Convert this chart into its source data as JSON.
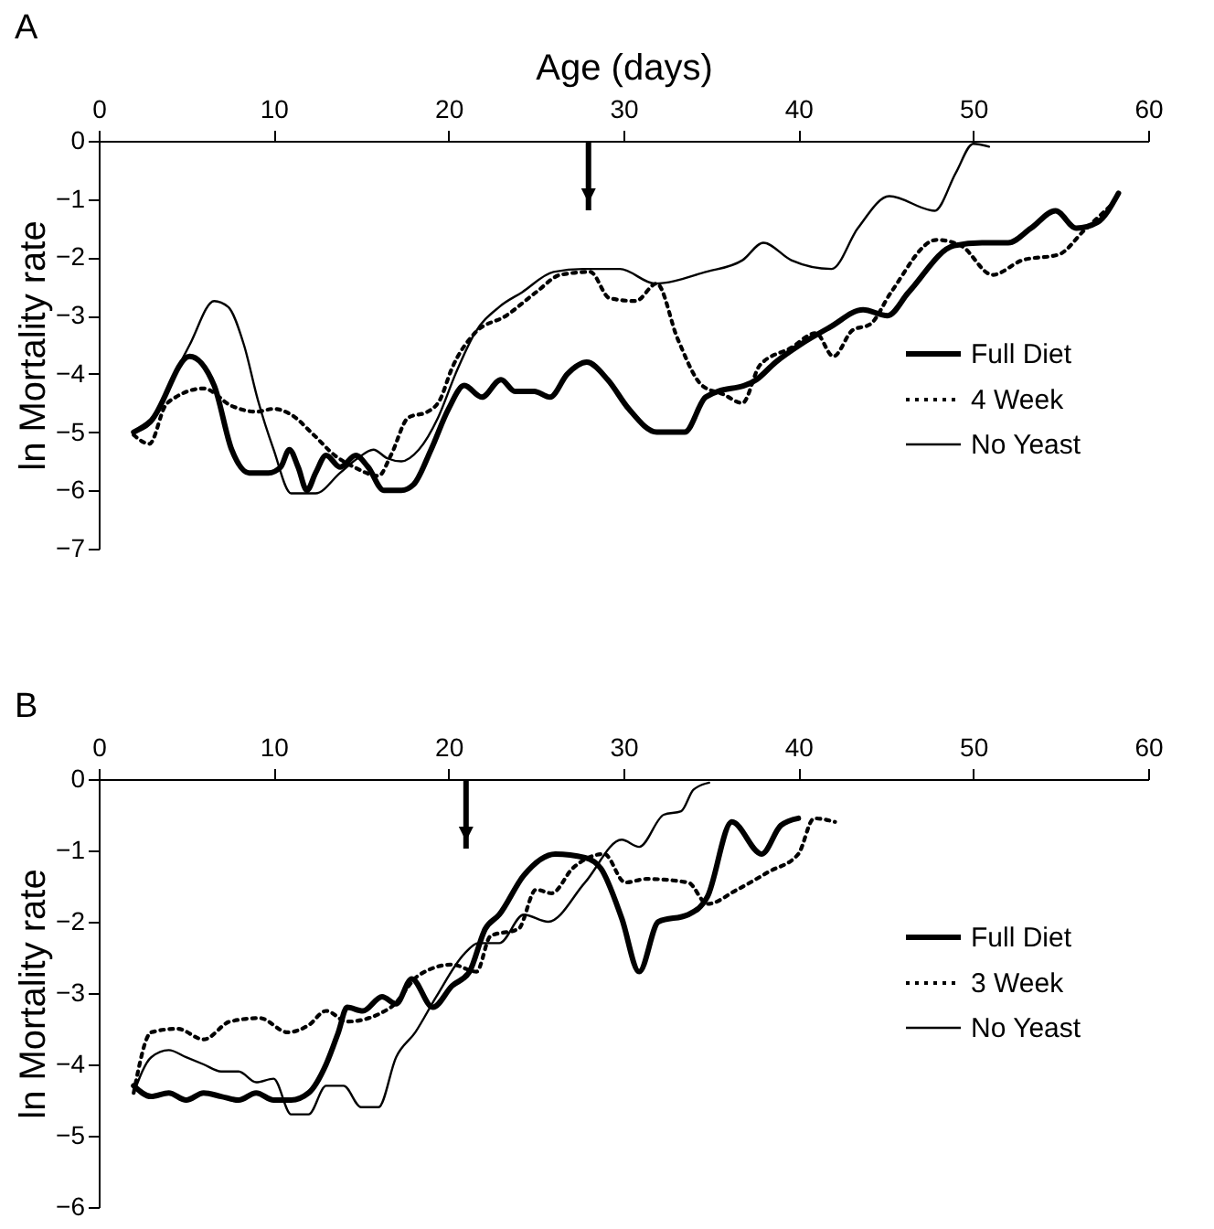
{
  "chart_data": [
    {
      "type": "line",
      "title": "A",
      "xlabel": "Age (days)",
      "ylabel": "ln Mortality rate",
      "xlim": [
        0,
        60
      ],
      "xticks": [
        0,
        10,
        20,
        30,
        40,
        50,
        60
      ],
      "ylim": [
        -7,
        0
      ],
      "yticks": [
        -7,
        -6,
        -5,
        -4,
        -3,
        -2,
        -1,
        0
      ],
      "grid": false,
      "legend": "right",
      "ref_lines": [
        {
          "axis": "x",
          "value": 28
        }
      ],
      "series": [
        {
          "name": "Full Diet",
          "color": "#000000",
          "line_style": "solid",
          "x": [
            2,
            3,
            5.2,
            6.6,
            7.6,
            8.6,
            9.7,
            10.4,
            10.9,
            11.4,
            11.9,
            12.4,
            13,
            13.8,
            14.7,
            15.4,
            16.3,
            17.3,
            18,
            19,
            20,
            20.9,
            21.9,
            23,
            23.8,
            24.9,
            25.8,
            26.8,
            27.9,
            29.1,
            30.3,
            31.9,
            33.5,
            34.7,
            37.6,
            38.7,
            40.1,
            41.8,
            43.7,
            45.1,
            46.3,
            48.9,
            50.5,
            52,
            53.3,
            54.7,
            55.9,
            57.1,
            58.3
          ],
          "values": [
            -5,
            -4.8,
            -3.7,
            -4.2,
            -5.3,
            -5.7,
            -5.7,
            -5.6,
            -5.3,
            -5.6,
            -6,
            -5.7,
            -5.4,
            -5.6,
            -5.4,
            -5.6,
            -6,
            -6,
            -5.9,
            -5.3,
            -4.6,
            -4.2,
            -4.4,
            -4.1,
            -4.3,
            -4.3,
            -4.4,
            -4,
            -3.8,
            -4.1,
            -4.6,
            -5,
            -5,
            -4.4,
            -4.1,
            -3.8,
            -3.5,
            -3.2,
            -2.9,
            -3,
            -2.6,
            -1.8,
            -1.75,
            -1.75,
            -1.5,
            -1.2,
            -1.5,
            -1.4,
            -0.9
          ]
        },
        {
          "name": "4 Week",
          "color": "#000000",
          "line_style": "dotted",
          "x": [
            2,
            2.9,
            3.8,
            4.4,
            6,
            7.6,
            9,
            10,
            11,
            12.3,
            13.5,
            14.6,
            16,
            16.7,
            17.7,
            18.8,
            19.5,
            20.2,
            21.5,
            23.3,
            25,
            26.4,
            28.1,
            29.2,
            30.7,
            31.9,
            33.1,
            34.5,
            35.7,
            36.8,
            37.8,
            39.6,
            41,
            42,
            43.1,
            44.1,
            45.3,
            47.9,
            49.3,
            51.1,
            52.8,
            54.9,
            56.3,
            57.9
          ],
          "values": [
            -5.05,
            -5.2,
            -4.55,
            -4.4,
            -4.25,
            -4.55,
            -4.65,
            -4.6,
            -4.7,
            -5.05,
            -5.4,
            -5.6,
            -5.75,
            -5.4,
            -4.75,
            -4.65,
            -4.45,
            -3.9,
            -3.3,
            -3,
            -2.6,
            -2.3,
            -2.25,
            -2.7,
            -2.75,
            -2.45,
            -3.4,
            -4.2,
            -4.35,
            -4.5,
            -3.85,
            -3.55,
            -3.3,
            -3.7,
            -3.25,
            -3.15,
            -2.6,
            -1.7,
            -1.8,
            -2.3,
            -2.05,
            -1.95,
            -1.55,
            -1.1
          ]
        },
        {
          "name": "No Yeast",
          "color": "#000000",
          "line_style": "solid",
          "x": [
            2,
            3,
            4.1,
            5.2,
            6.6,
            7.4,
            8.3,
            9.1,
            10,
            11,
            12.4,
            13.8,
            14.8,
            15.7,
            16.5,
            17.3,
            18.3,
            19.4,
            20.4,
            21.5,
            22.9,
            24.2,
            26,
            27.7,
            29.8,
            31.8,
            34.7,
            36.8,
            38,
            39.6,
            41.9,
            43.4,
            45.2,
            47.8,
            49,
            50,
            50.9
          ],
          "values": [
            -5,
            -4.85,
            -4.15,
            -3.5,
            -2.75,
            -2.85,
            -3.5,
            -4.45,
            -5.3,
            -6.05,
            -6.05,
            -5.7,
            -5.45,
            -5.3,
            -5.45,
            -5.5,
            -5.3,
            -4.75,
            -4,
            -3.3,
            -2.85,
            -2.6,
            -2.25,
            -2.2,
            -2.2,
            -2.45,
            -2.25,
            -2.05,
            -1.75,
            -2.05,
            -2.2,
            -1.5,
            -0.95,
            -1.2,
            -0.55,
            -0.05,
            -0.1
          ]
        }
      ]
    },
    {
      "type": "line",
      "title": "B",
      "ylabel": "ln Mortality rate",
      "xlim": [
        0,
        60
      ],
      "xticks": [
        0,
        10,
        20,
        30,
        40,
        50,
        60
      ],
      "ylim": [
        -6,
        0
      ],
      "yticks": [
        -6,
        -5,
        -4,
        -3,
        -2,
        -1,
        0
      ],
      "grid": false,
      "legend": "right",
      "ref_lines": [
        {
          "axis": "x",
          "value": 21
        }
      ],
      "series": [
        {
          "name": "Full Diet",
          "color": "#000000",
          "line_style": "solid",
          "x": [
            2,
            3,
            4,
            5,
            6,
            7,
            8,
            9,
            10,
            11,
            12,
            13,
            13.7,
            14.2,
            15.1,
            16.2,
            17,
            17.9,
            19.1,
            20.2,
            21.2,
            22.1,
            22.9,
            24.3,
            26.1,
            27.8,
            28.7,
            29.9,
            30.9,
            32,
            33.7,
            34.8,
            36.2,
            37.9,
            39,
            40
          ],
          "values": [
            -4.3,
            -4.45,
            -4.4,
            -4.5,
            -4.4,
            -4.45,
            -4.5,
            -4.4,
            -4.5,
            -4.5,
            -4.4,
            -4,
            -3.55,
            -3.2,
            -3.25,
            -3.05,
            -3.15,
            -2.8,
            -3.2,
            -2.9,
            -2.7,
            -2.1,
            -1.9,
            -1.35,
            -1.05,
            -1.1,
            -1.25,
            -1.95,
            -2.7,
            -2,
            -1.9,
            -1.65,
            -0.6,
            -1.05,
            -0.65,
            -0.55
          ]
        },
        {
          "name": "3 Week",
          "color": "#000000",
          "line_style": "dotted",
          "x": [
            2,
            3,
            4.5,
            6,
            7.5,
            9.2,
            10.8,
            12,
            13,
            14.2,
            16.7,
            18.3,
            20.2,
            21.6,
            22.4,
            24,
            25,
            25.9,
            27.1,
            28.9,
            30.1,
            31.3,
            33.7,
            34.8,
            36.5,
            38.3,
            40,
            40.9,
            42.1
          ],
          "values": [
            -4.4,
            -3.55,
            -3.5,
            -3.65,
            -3.4,
            -3.35,
            -3.55,
            -3.45,
            -3.25,
            -3.4,
            -3.2,
            -2.75,
            -2.6,
            -2.7,
            -2.2,
            -2.1,
            -1.55,
            -1.6,
            -1.25,
            -1.05,
            -1.45,
            -1.4,
            -1.45,
            -1.75,
            -1.55,
            -1.3,
            -1.05,
            -0.55,
            -0.6
          ]
        },
        {
          "name": "No Yeast",
          "color": "#000000",
          "line_style": "solid",
          "x": [
            2,
            3,
            4,
            5,
            6,
            7,
            8,
            9,
            10,
            11,
            12,
            13,
            14,
            15,
            16,
            17,
            18.1,
            19.3,
            20.9,
            21.7,
            22.9,
            24.3,
            25.7,
            27.8,
            29.9,
            30.9,
            32.3,
            33.3,
            34,
            34.9
          ],
          "values": [
            -4.4,
            -3.9,
            -3.8,
            -3.9,
            -4,
            -4.1,
            -4.1,
            -4.25,
            -4.2,
            -4.7,
            -4.7,
            -4.3,
            -4.3,
            -4.6,
            -4.6,
            -3.9,
            -3.55,
            -3.05,
            -2.45,
            -2.3,
            -2.3,
            -1.9,
            -2,
            -1.45,
            -0.85,
            -0.95,
            -0.5,
            -0.45,
            -0.15,
            -0.05
          ]
        }
      ]
    }
  ]
}
